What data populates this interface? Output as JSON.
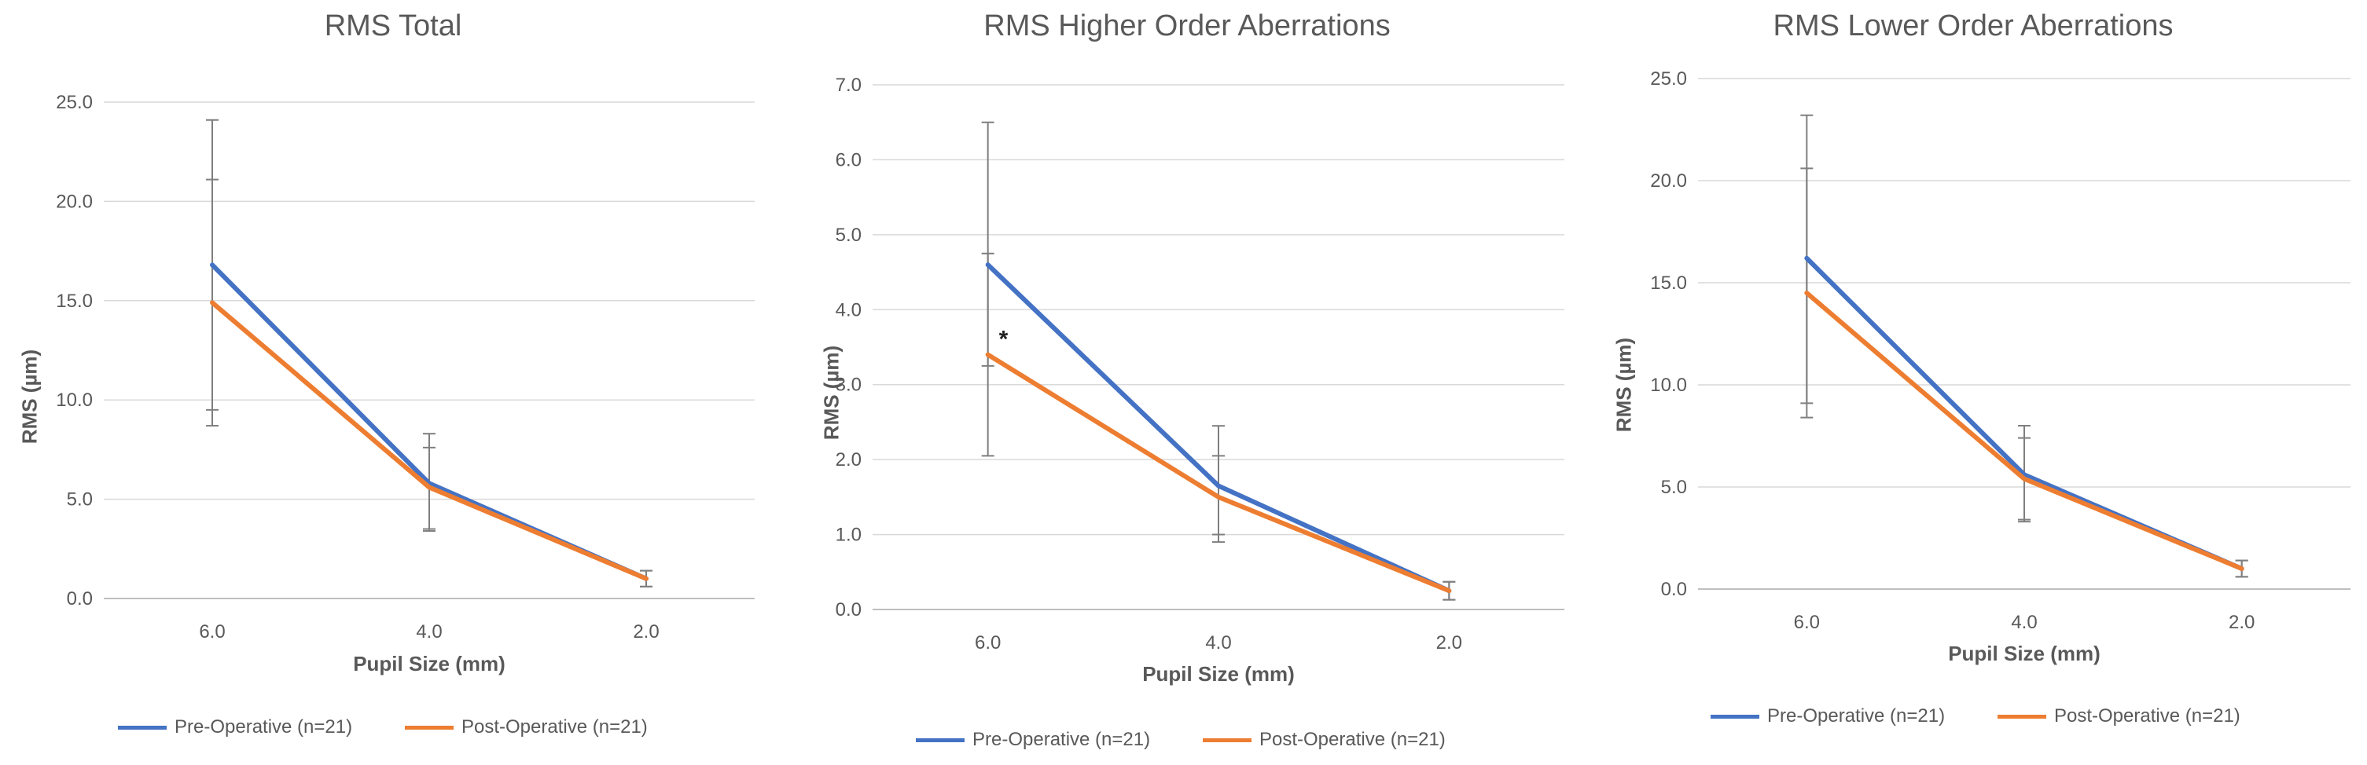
{
  "colors": {
    "pre": "#4472c4",
    "post": "#ed7d31",
    "error": "#7f7f7f",
    "grid": "#d9d9d9"
  },
  "chart_data": [
    {
      "type": "line",
      "title": "RMS Total",
      "xlabel": "Pupil Size (mm)",
      "ylabel": "RMS (µm)",
      "categories": [
        "6.0",
        "4.0",
        "2.0"
      ],
      "ylim": [
        0,
        25
      ],
      "yticks": [
        "0.0",
        "5.0",
        "10.0",
        "15.0",
        "20.0",
        "25.0"
      ],
      "grid": true,
      "legend_position": "bottom",
      "series": [
        {
          "name": "Pre-Operative (n=21)",
          "values": [
            16.8,
            5.8,
            1.0
          ],
          "error_low": [
            9.5,
            3.4,
            0.6
          ],
          "error_high": [
            24.1,
            8.3,
            1.4
          ]
        },
        {
          "name": "Post-Operative (n=21)",
          "values": [
            14.9,
            5.6,
            1.0
          ],
          "error_low": [
            8.7,
            3.5,
            0.6
          ],
          "error_high": [
            21.1,
            7.6,
            1.4
          ]
        }
      ]
    },
    {
      "type": "line",
      "title": "RMS Higher Order Aberrations",
      "xlabel": "Pupil Size (mm)",
      "ylabel": "RMS (µm)",
      "categories": [
        "6.0",
        "4.0",
        "2.0"
      ],
      "ylim": [
        0,
        7
      ],
      "yticks": [
        "0.0",
        "1.0",
        "2.0",
        "3.0",
        "4.0",
        "5.0",
        "6.0",
        "7.0"
      ],
      "grid": true,
      "legend_position": "bottom",
      "annotations": [
        "*"
      ],
      "series": [
        {
          "name": "Pre-Operative (n=21)",
          "values": [
            4.6,
            1.65,
            0.25
          ],
          "error_low": [
            3.25,
            0.9,
            0.13
          ],
          "error_high": [
            6.5,
            2.45,
            0.37
          ]
        },
        {
          "name": "Post-Operative (n=21)",
          "values": [
            3.4,
            1.5,
            0.25
          ],
          "error_low": [
            2.05,
            1.0,
            0.13
          ],
          "error_high": [
            4.75,
            2.05,
            0.37
          ]
        }
      ]
    },
    {
      "type": "line",
      "title": "RMS Lower Order Aberrations",
      "xlabel": "Pupil Size (mm)",
      "ylabel": "RMS (µm)",
      "categories": [
        "6.0",
        "4.0",
        "2.0"
      ],
      "ylim": [
        0,
        25
      ],
      "yticks": [
        "0.0",
        "5.0",
        "10.0",
        "15.0",
        "20.0",
        "25.0"
      ],
      "grid": true,
      "legend_position": "bottom",
      "series": [
        {
          "name": "Pre-Operative (n=21)",
          "values": [
            16.2,
            5.6,
            1.0
          ],
          "error_low": [
            9.1,
            3.4,
            0.6
          ],
          "error_high": [
            23.2,
            8.0,
            1.4
          ]
        },
        {
          "name": "Post-Operative (n=21)",
          "values": [
            14.5,
            5.4,
            1.0
          ],
          "error_low": [
            8.4,
            3.3,
            0.6
          ],
          "error_high": [
            20.6,
            7.4,
            1.4
          ]
        }
      ]
    }
  ]
}
